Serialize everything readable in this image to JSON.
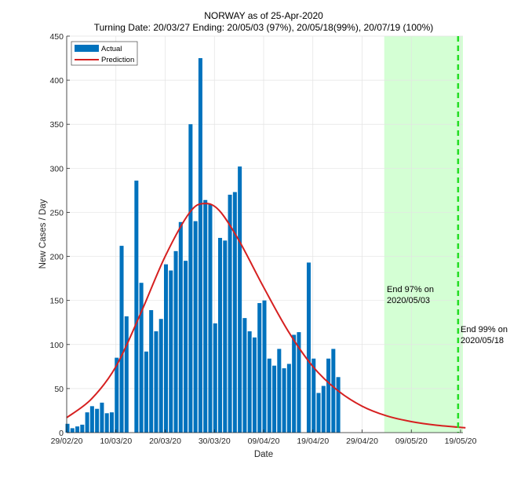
{
  "chart_data": {
    "type": "bar",
    "title": "NORWAY as of 25-Apr-2020",
    "subtitle": "Turning Date: 20/03/27  Ending: 20/05/03 (97%), 20/05/18(99%), 20/07/19 (100%)",
    "xlabel": "Date",
    "ylabel": "New Cases / Day",
    "ylim": [
      0,
      450
    ],
    "yticks": [
      0,
      50,
      100,
      150,
      200,
      250,
      300,
      350,
      400,
      450
    ],
    "xlim_days": [
      0,
      81
    ],
    "xticks": [
      {
        "day": 0,
        "label": "29/02/20"
      },
      {
        "day": 10,
        "label": "10/03/20"
      },
      {
        "day": 20,
        "label": "20/03/20"
      },
      {
        "day": 30,
        "label": "30/03/20"
      },
      {
        "day": 40,
        "label": "09/04/20"
      },
      {
        "day": 50,
        "label": "19/04/20"
      },
      {
        "day": 60,
        "label": "29/04/20"
      },
      {
        "day": 70,
        "label": "09/05/20"
      },
      {
        "day": 80,
        "label": "19/05/20"
      }
    ],
    "grid": true,
    "legend": {
      "position": "top-left",
      "entries": [
        {
          "label": "Actual",
          "color": "#0072BD",
          "kind": "bar"
        },
        {
          "label": "Prediction",
          "color": "#D62020",
          "kind": "line"
        }
      ]
    },
    "series": [
      {
        "name": "Actual",
        "color": "#0072BD",
        "start_date": "29/02/20",
        "values": [
          10,
          5,
          7,
          9,
          23,
          30,
          27,
          34,
          22,
          23,
          85,
          212,
          132,
          0,
          286,
          170,
          92,
          139,
          115,
          129,
          191,
          184,
          206,
          239,
          195,
          350,
          240,
          425,
          264,
          259,
          124,
          221,
          218,
          270,
          273,
          302,
          130,
          115,
          108,
          147,
          150,
          84,
          76,
          95,
          73,
          78,
          111,
          114,
          0,
          193,
          84,
          45,
          53,
          84,
          95,
          63
        ]
      },
      {
        "name": "Prediction",
        "color": "#D62020",
        "kind": "line",
        "model": "gaussian-like peak",
        "peak_day": 28,
        "peak_value": 260,
        "points": [
          {
            "day": 0,
            "value": 17
          },
          {
            "day": 5,
            "value": 38
          },
          {
            "day": 10,
            "value": 75
          },
          {
            "day": 15,
            "value": 135
          },
          {
            "day": 20,
            "value": 200
          },
          {
            "day": 25,
            "value": 250
          },
          {
            "day": 28,
            "value": 260
          },
          {
            "day": 31,
            "value": 252
          },
          {
            "day": 35,
            "value": 218
          },
          {
            "day": 40,
            "value": 165
          },
          {
            "day": 45,
            "value": 115
          },
          {
            "day": 50,
            "value": 75
          },
          {
            "day": 55,
            "value": 48
          },
          {
            "day": 60,
            "value": 30
          },
          {
            "day": 65,
            "value": 19
          },
          {
            "day": 70,
            "value": 12.5
          },
          {
            "day": 75,
            "value": 8.5
          },
          {
            "day": 81,
            "value": 5.5
          }
        ]
      }
    ],
    "shaded_region": {
      "from_day": 64.5,
      "to_day": 81,
      "color": "#CCFFCC",
      "meaning": "after 97% end"
    },
    "vertical_line": {
      "day": 79.5,
      "color": "#22DD22",
      "style": "dashed",
      "meaning": "99% end"
    },
    "annotations": [
      {
        "line1": "End 97% on",
        "line2": "2020/05/03",
        "at_day": 65,
        "at_value": 160
      },
      {
        "line1": "End 99% on",
        "line2": "2020/05/18",
        "at_day": 80,
        "at_value": 115
      }
    ]
  }
}
